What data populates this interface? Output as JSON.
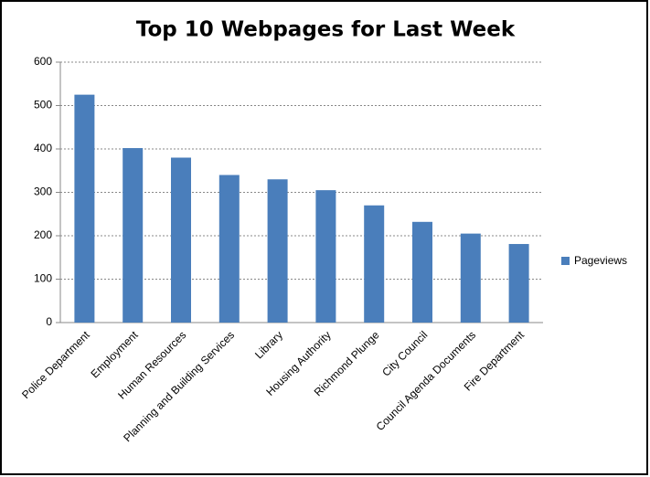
{
  "chart_data": {
    "type": "bar",
    "title": "Top 10 Webpages for Last Week",
    "categories": [
      "Police Department",
      "Employment",
      "Human Resources",
      "Planning and Building Services",
      "Library",
      "Housing Authority",
      "Richmond Plunge",
      "City Council",
      "Council Agenda Documents",
      "Fire Department"
    ],
    "series": [
      {
        "name": "Pageviews",
        "color": "#4a7ebb",
        "values": [
          525,
          402,
          380,
          340,
          330,
          305,
          270,
          232,
          205,
          181
        ]
      }
    ],
    "ylim": [
      0,
      600
    ],
    "yticks": [
      0,
      100,
      200,
      300,
      400,
      500,
      600
    ],
    "grid": true,
    "legend": "right"
  }
}
